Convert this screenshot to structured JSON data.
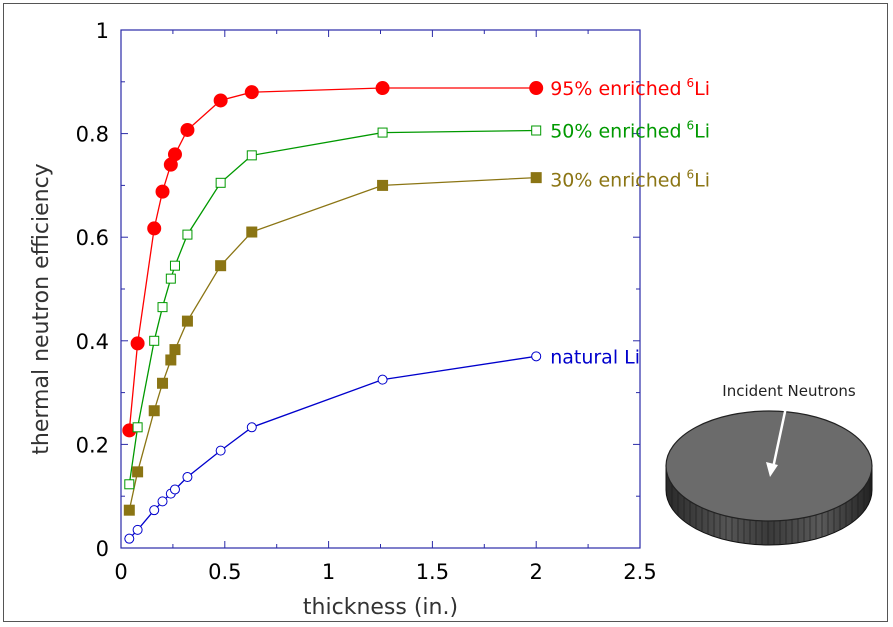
{
  "chart_data": {
    "type": "scatter",
    "title": "",
    "xlabel": "thickness (in.)",
    "ylabel": "thermal neutron efficiency",
    "xlim": [
      0,
      2.5
    ],
    "ylim": [
      0,
      1
    ],
    "x_ticks": [
      "0",
      "0.5",
      "1",
      "1.5",
      "2",
      "2.5"
    ],
    "y_ticks": [
      "0",
      "0.2",
      "0.4",
      "0.6",
      "0.8",
      "1"
    ],
    "grid": false,
    "series": [
      {
        "name": "95% enriched",
        "name_sup": "6",
        "name_suffix": "Li",
        "color": "#ff0000",
        "marker": "filled-circle",
        "x": [
          0.04,
          0.08,
          0.16,
          0.2,
          0.24,
          0.26,
          0.32,
          0.48,
          0.63,
          1.26,
          2.0
        ],
        "y": [
          0.227,
          0.395,
          0.617,
          0.688,
          0.74,
          0.76,
          0.807,
          0.864,
          0.88,
          0.888,
          0.888
        ]
      },
      {
        "name": "50% enriched",
        "name_sup": "6",
        "name_suffix": "Li",
        "color": "#009900",
        "marker": "open-square",
        "x": [
          0.04,
          0.08,
          0.16,
          0.2,
          0.24,
          0.26,
          0.32,
          0.48,
          0.63,
          1.26,
          2.0
        ],
        "y": [
          0.123,
          0.233,
          0.4,
          0.465,
          0.52,
          0.545,
          0.605,
          0.705,
          0.758,
          0.802,
          0.806
        ]
      },
      {
        "name": "30% enriched",
        "name_sup": "6",
        "name_suffix": "Li",
        "color": "#8b7514",
        "marker": "filled-square",
        "x": [
          0.04,
          0.08,
          0.16,
          0.2,
          0.24,
          0.26,
          0.32,
          0.48,
          0.63,
          1.26,
          2.0
        ],
        "y": [
          0.073,
          0.147,
          0.265,
          0.318,
          0.363,
          0.383,
          0.438,
          0.545,
          0.61,
          0.7,
          0.715
        ]
      },
      {
        "name": "natural Li",
        "name_sup": "",
        "name_suffix": "",
        "color": "#0000cc",
        "marker": "open-circle",
        "x": [
          0.04,
          0.08,
          0.16,
          0.2,
          0.24,
          0.26,
          0.32,
          0.48,
          0.63,
          1.26,
          2.0
        ],
        "y": [
          0.018,
          0.035,
          0.073,
          0.09,
          0.105,
          0.113,
          0.137,
          0.188,
          0.233,
          0.325,
          0.37
        ]
      }
    ],
    "inset": {
      "label": "Incident Neutrons",
      "disk_color": "#6b6b6b"
    }
  }
}
